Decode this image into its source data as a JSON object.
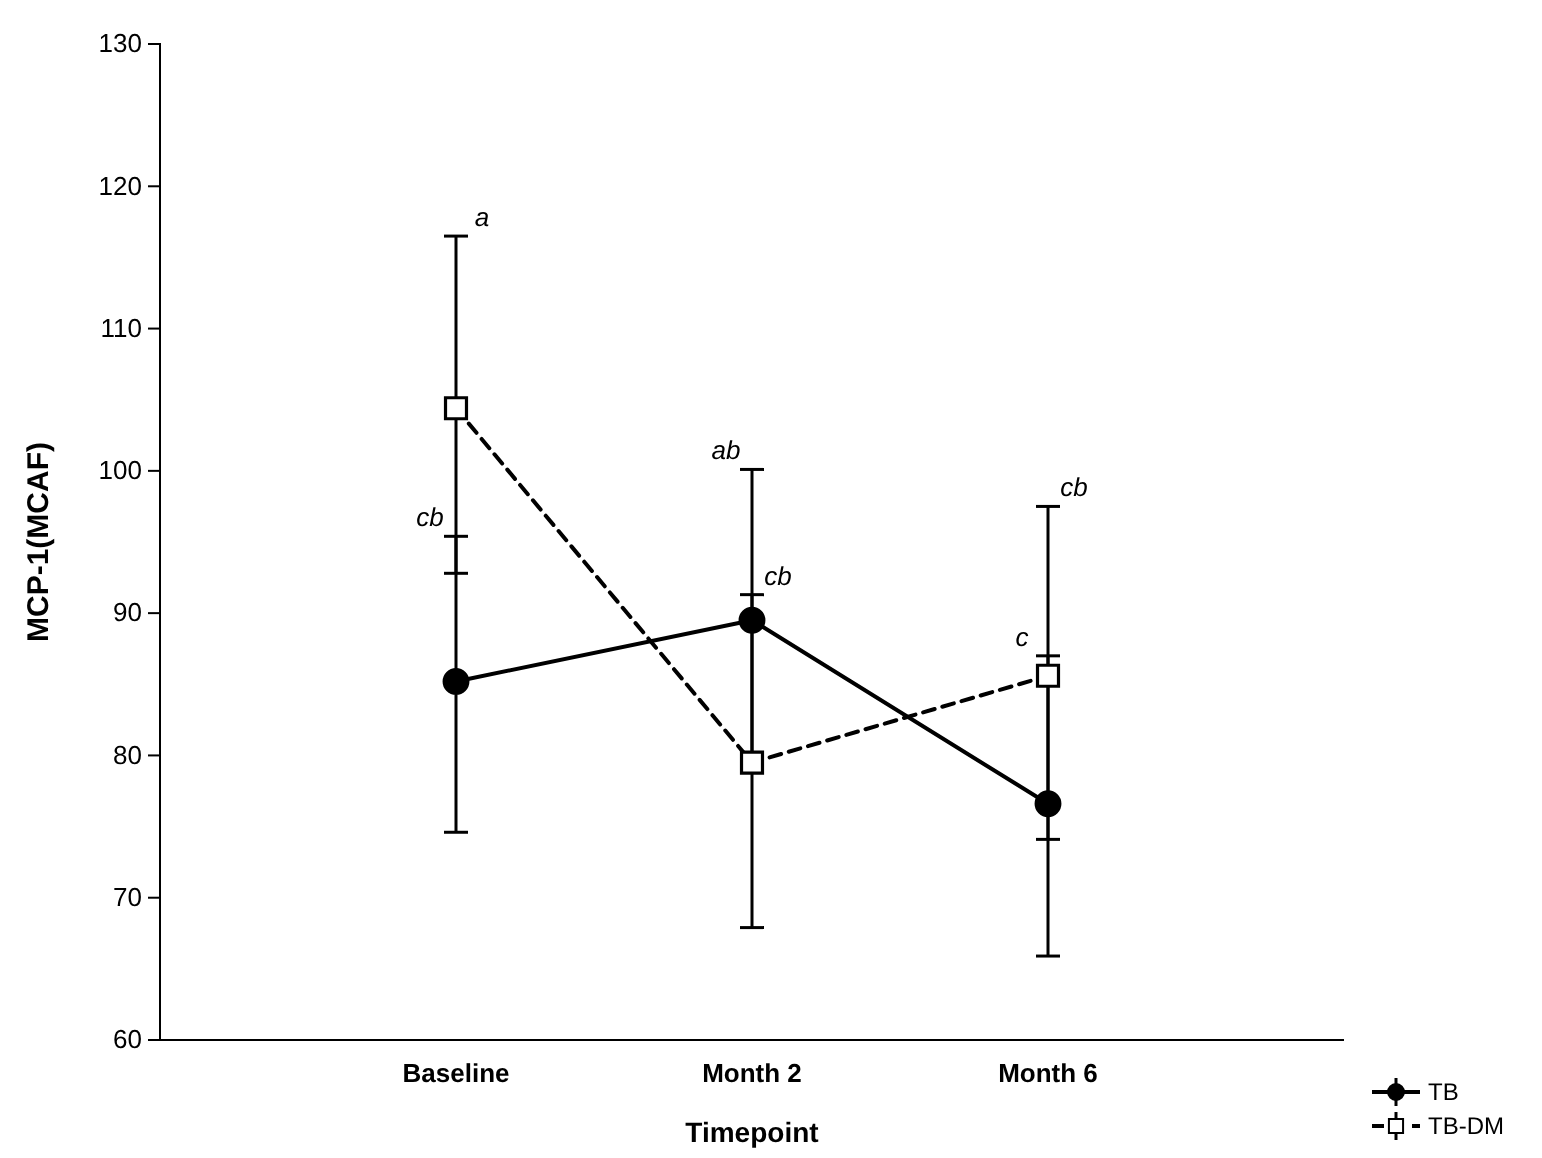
{
  "chart_data": {
    "type": "line",
    "xlabel": "Timepoint",
    "ylabel": "MCP-1(MCAF)",
    "categories": [
      "Baseline",
      "Month 2",
      "Month 6"
    ],
    "series": [
      {
        "name": "TB",
        "color": "#000000",
        "marker": "circle",
        "line_style": "solid",
        "values": [
          85.2,
          89.5,
          76.6
        ],
        "errors": [
          [
            74.6,
            95.4
          ],
          [
            79.0,
            100.1
          ],
          [
            65.9,
            87.0
          ]
        ]
      },
      {
        "name": "TB-DM",
        "color": "#000000",
        "marker": "square",
        "line_style": "dashed",
        "values": [
          104.4,
          79.5,
          85.6
        ],
        "errors": [
          [
            92.8,
            116.5
          ],
          [
            67.9,
            91.3
          ],
          [
            74.1,
            97.5
          ]
        ]
      }
    ],
    "annotations": [
      "cb",
      "a",
      "ab",
      "cb",
      "c",
      "cb"
    ],
    "ylim": [
      60,
      130
    ],
    "yticks": [
      60,
      70,
      80,
      90,
      100,
      110,
      120,
      130
    ],
    "grid": false,
    "legend": "bottom right"
  }
}
